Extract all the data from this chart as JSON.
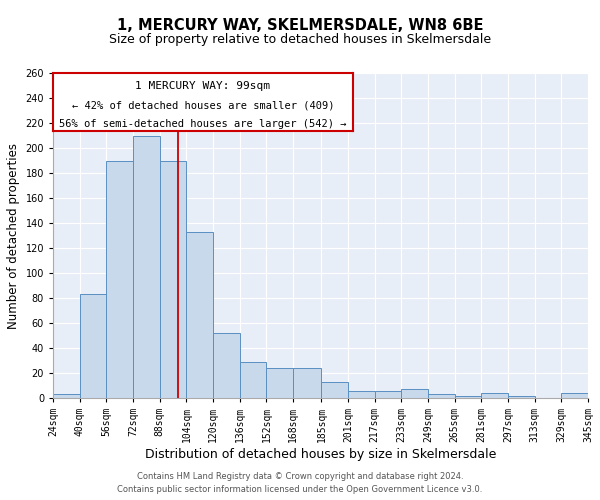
{
  "title": "1, MERCURY WAY, SKELMERSDALE, WN8 6BE",
  "subtitle": "Size of property relative to detached houses in Skelmersdale",
  "xlabel": "Distribution of detached houses by size in Skelmersdale",
  "ylabel": "Number of detached properties",
  "bin_edges": [
    24,
    40,
    56,
    72,
    88,
    104,
    120,
    136,
    152,
    168,
    185,
    201,
    217,
    233,
    249,
    265,
    281,
    297,
    313,
    329,
    345
  ],
  "bar_heights": [
    3,
    83,
    190,
    210,
    190,
    133,
    52,
    29,
    24,
    24,
    13,
    5,
    5,
    7,
    3,
    1,
    4,
    1,
    0,
    4
  ],
  "bar_color": "#c9d9ec",
  "bar_edge_color": "#5a8fc3",
  "property_line_x": 99,
  "property_line_color": "#cc0000",
  "annotation_title": "1 MERCURY WAY: 99sqm",
  "annotation_line1": "← 42% of detached houses are smaller (409)",
  "annotation_line2": "56% of semi-detached houses are larger (542) →",
  "ylim": [
    0,
    260
  ],
  "yticks": [
    0,
    20,
    40,
    60,
    80,
    100,
    120,
    140,
    160,
    180,
    200,
    220,
    240,
    260
  ],
  "tick_labels": [
    "24sqm",
    "40sqm",
    "56sqm",
    "72sqm",
    "88sqm",
    "104sqm",
    "120sqm",
    "136sqm",
    "152sqm",
    "168sqm",
    "185sqm",
    "201sqm",
    "217sqm",
    "233sqm",
    "249sqm",
    "265sqm",
    "281sqm",
    "297sqm",
    "313sqm",
    "329sqm",
    "345sqm"
  ],
  "footer_line1": "Contains HM Land Registry data © Crown copyright and database right 2024.",
  "footer_line2": "Contains public sector information licensed under the Open Government Licence v3.0.",
  "bg_color": "#ffffff",
  "plot_bg_color": "#e8eef7",
  "grid_color": "#ffffff",
  "title_fontsize": 10.5,
  "subtitle_fontsize": 9,
  "xlabel_fontsize": 9,
  "ylabel_fontsize": 8.5,
  "tick_fontsize": 7,
  "annotation_title_fontsize": 8,
  "annotation_fontsize": 7.5,
  "footer_fontsize": 6
}
